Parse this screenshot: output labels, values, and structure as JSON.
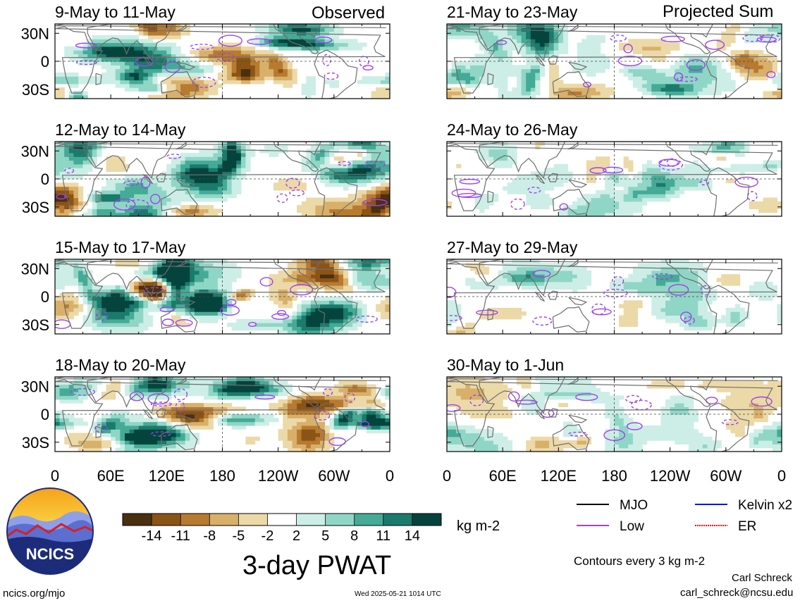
{
  "figure": {
    "title": "3-day PWAT",
    "left_header": "Observed",
    "right_header": "Projected Sum",
    "units": "kg m-2",
    "contour_note": "Contours every 3 kg m-2",
    "author": "Carl Schreck",
    "email": "carl_schreck@ncsu.edu",
    "site": "ncics.org/mjo",
    "timestamp": "Wed 2025-05-21 1014 UTC",
    "logo_text": "NCICS"
  },
  "legend": {
    "items": [
      {
        "label": "MJO",
        "color": "#000000"
      },
      {
        "label": "Kelvin x2",
        "color": "#1010ee"
      },
      {
        "label": "Low",
        "color": "#a040f0"
      },
      {
        "label": "ER",
        "color": "#ee1010"
      }
    ]
  },
  "colorbar": {
    "colors": [
      "#4a3010",
      "#8a5416",
      "#b87a30",
      "#d8b06a",
      "#ecd9a8",
      "#f4f4f4",
      "#ffffff",
      "#cceee6",
      "#8fd6c6",
      "#45aa96",
      "#1a7a6c",
      "#04443c"
    ],
    "tick_labels": [
      "-14",
      "-11",
      "-8",
      "-5",
      "-2",
      "2",
      "5",
      "8",
      "11",
      "14"
    ]
  },
  "axes": {
    "y_ticks": [
      "30N",
      "0",
      "30S"
    ],
    "x_ticks": [
      "0",
      "60E",
      "120E",
      "180",
      "120W",
      "60W",
      "0"
    ]
  },
  "chart_data": {
    "type": "heatmap",
    "variable": "3-day PWAT",
    "units": "kg m-2",
    "lon_range": [
      0,
      360
    ],
    "lat_range": [
      -40,
      40
    ],
    "color_levels": [
      -14,
      -11,
      -8,
      -5,
      -2,
      2,
      5,
      8,
      11,
      14
    ],
    "panels": [
      {
        "title": "9-May to 11-May",
        "column": "Observed",
        "seed": 11,
        "intensity": 1.0
      },
      {
        "title": "12-May to 14-May",
        "column": "Observed",
        "seed": 23,
        "intensity": 1.0
      },
      {
        "title": "15-May to 17-May",
        "column": "Observed",
        "seed": 37,
        "intensity": 1.0
      },
      {
        "title": "18-May to 20-May",
        "column": "Observed",
        "seed": 51,
        "intensity": 1.0
      },
      {
        "title": "21-May to 23-May",
        "column": "Projected Sum",
        "seed": 67,
        "intensity": 0.75
      },
      {
        "title": "24-May to 26-May",
        "column": "Projected Sum",
        "seed": 79,
        "intensity": 0.55
      },
      {
        "title": "27-May to 29-May",
        "column": "Projected Sum",
        "seed": 83,
        "intensity": 0.5
      },
      {
        "title": "30-May to 1-Jun",
        "column": "Projected Sum",
        "seed": 97,
        "intensity": 0.45
      }
    ]
  }
}
